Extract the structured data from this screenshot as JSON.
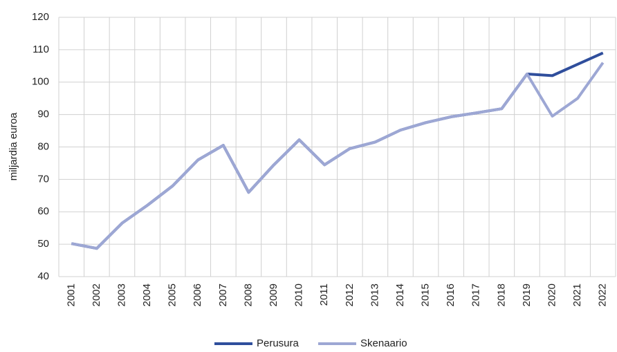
{
  "chart_data": {
    "type": "line",
    "y_label": "miljardia euroa",
    "categories": [
      "2001",
      "2002",
      "2003",
      "2004",
      "2005",
      "2006",
      "2007",
      "2008",
      "2009",
      "2010",
      "2011",
      "2012",
      "2013",
      "2014",
      "2015",
      "2016",
      "2017",
      "2018",
      "2019",
      "2020",
      "2021",
      "2022"
    ],
    "series": [
      {
        "name": "Perusura",
        "color": "#2f4e9c",
        "values": [
          50.2,
          48.7,
          56.5,
          62,
          68,
          76,
          80.5,
          66,
          74.5,
          82.2,
          74.5,
          79.5,
          81.5,
          85.2,
          87.5,
          89.3,
          90.5,
          91.8,
          102.5,
          102,
          105.5,
          109
        ]
      },
      {
        "name": "Skenaario",
        "color": "#9da7d4",
        "values": [
          50.2,
          48.7,
          56.5,
          62,
          68,
          76,
          80.5,
          66,
          74.5,
          82.2,
          74.5,
          79.5,
          81.5,
          85.2,
          87.5,
          89.3,
          90.5,
          91.8,
          102.5,
          89.5,
          95,
          106
        ]
      }
    ],
    "ylim": [
      40,
      120
    ],
    "yticks": [
      40,
      50,
      60,
      70,
      80,
      90,
      100,
      110,
      120
    ],
    "grid": true
  }
}
